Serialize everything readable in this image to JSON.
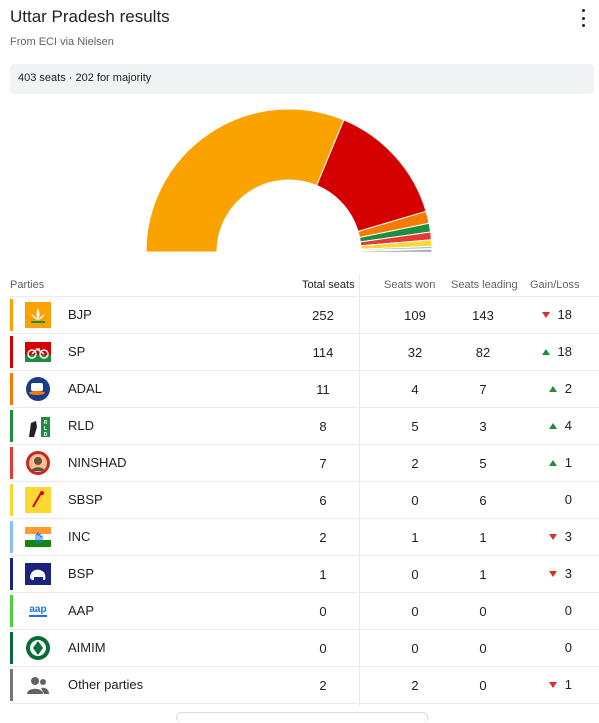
{
  "header": {
    "title": "Uttar Pradesh results",
    "subtitle": "From ECI via Nielsen",
    "menu_icon": "more-vert-icon"
  },
  "info": {
    "text": "403 seats · 202 for majority"
  },
  "chart_data": {
    "type": "pie",
    "title": "",
    "subtitle": "",
    "total_seats": 403,
    "majority": 202,
    "slices": [
      {
        "label": "BJP",
        "value": 252,
        "color": "#f9a200"
      },
      {
        "label": "SP",
        "value": 114,
        "color": "#d50000"
      },
      {
        "label": "ADAL",
        "value": 11,
        "color": "#f57c00"
      },
      {
        "label": "RLD",
        "value": 8,
        "color": "#1e8e3e"
      },
      {
        "label": "NINSHAD",
        "value": 7,
        "color": "#e53935"
      },
      {
        "label": "SBSP",
        "value": 6,
        "color": "#fdd835"
      },
      {
        "label": "INC",
        "value": 2,
        "color": "#81c4e8"
      },
      {
        "label": "BSP",
        "value": 1,
        "color": "#1a237e"
      },
      {
        "label": "Other parties",
        "value": 2,
        "color": "#757575"
      }
    ]
  },
  "table": {
    "headers": {
      "parties": "Parties",
      "total": "Total seats",
      "won": "Seats won",
      "leading": "Seats leading",
      "gain": "Gain/Loss"
    },
    "rows": [
      {
        "name": "BJP",
        "total": "252",
        "won": "109",
        "leading": "143",
        "gain": "18",
        "dir": "down",
        "color": "#f9a200",
        "icon": "lotus-icon"
      },
      {
        "name": "SP",
        "total": "114",
        "won": "32",
        "leading": "82",
        "gain": "18",
        "dir": "up",
        "color": "#d50000",
        "icon": "bicycle-icon"
      },
      {
        "name": "ADAL",
        "total": "11",
        "won": "4",
        "leading": "7",
        "gain": "2",
        "dir": "up",
        "color": "#f57c00",
        "icon": "cup-saucer-icon"
      },
      {
        "name": "RLD",
        "total": "8",
        "won": "5",
        "leading": "3",
        "gain": "4",
        "dir": "up",
        "color": "#1e8e3e",
        "icon": "handpump-icon"
      },
      {
        "name": "NINSHAD",
        "total": "7",
        "won": "2",
        "leading": "5",
        "gain": "1",
        "dir": "up",
        "color": "#e53935",
        "icon": "portrait-icon"
      },
      {
        "name": "SBSP",
        "total": "6",
        "won": "0",
        "leading": "6",
        "gain": "0",
        "dir": "none",
        "color": "#fdd835",
        "icon": "walking-stick-icon"
      },
      {
        "name": "INC",
        "total": "2",
        "won": "1",
        "leading": "1",
        "gain": "3",
        "dir": "down",
        "color": "#81c4e8",
        "icon": "hand-flag-icon"
      },
      {
        "name": "BSP",
        "total": "1",
        "won": "0",
        "leading": "1",
        "gain": "3",
        "dir": "down",
        "color": "#1a237e",
        "icon": "elephant-icon"
      },
      {
        "name": "AAP",
        "total": "0",
        "won": "0",
        "leading": "0",
        "gain": "0",
        "dir": "none",
        "color": "#4cd137",
        "icon": "aap-logo-icon"
      },
      {
        "name": "AIMIM",
        "total": "0",
        "won": "0",
        "leading": "0",
        "gain": "0",
        "dir": "none",
        "color": "#0b6b3a",
        "icon": "kite-icon"
      },
      {
        "name": "Other parties",
        "total": "2",
        "won": "2",
        "leading": "0",
        "gain": "1",
        "dir": "down",
        "color": "#757575",
        "icon": "people-icon"
      }
    ]
  }
}
